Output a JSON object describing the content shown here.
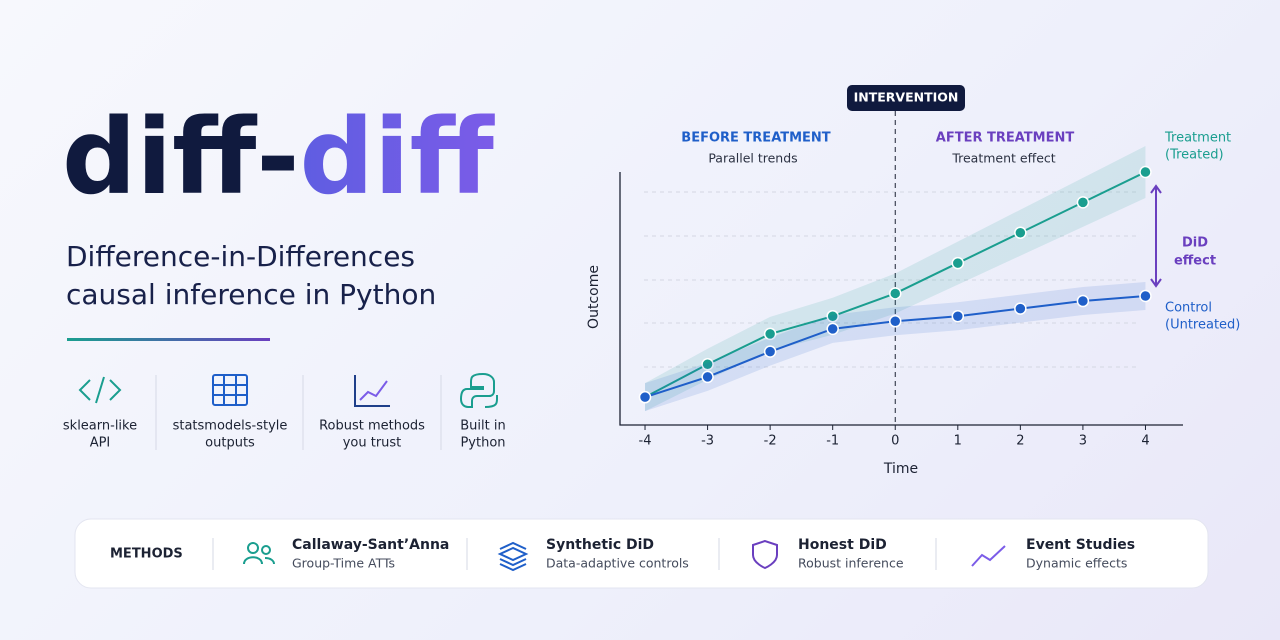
{
  "header": {
    "title_part1": "diff-",
    "title_part2": "diff",
    "subtitle": [
      "Difference-in-Differences",
      "causal inference in Python"
    ]
  },
  "features": [
    {
      "label": [
        "sklearn-like",
        "API"
      ]
    },
    {
      "label": [
        "statsmodels-style",
        "outputs"
      ]
    },
    {
      "label": [
        "Robust methods",
        "you trust"
      ]
    },
    {
      "label": [
        "Built in",
        "Python"
      ]
    }
  ],
  "methods": {
    "heading": "METHODS",
    "items": [
      {
        "title": "Callaway-Sant’Anna",
        "subtitle": "Group-Time ATTs"
      },
      {
        "title": "Synthetic DiD",
        "subtitle": "Data-adaptive controls"
      },
      {
        "title": "Honest DiD",
        "subtitle": "Robust inference"
      },
      {
        "title": "Event Studies",
        "subtitle": "Dynamic effects"
      }
    ]
  },
  "chart_data": {
    "type": "line",
    "x_label": "Time",
    "y_label": "Outcome",
    "x": [
      -4,
      -3,
      -2,
      -1,
      0,
      1,
      2,
      3,
      4
    ],
    "xlim": [
      -4.4,
      4.6
    ],
    "xticks": [
      -4,
      -3,
      -2,
      -1,
      0,
      1,
      2,
      3,
      4
    ],
    "ylim": [
      0,
      10
    ],
    "series": [
      {
        "name": [
          "Treatment",
          "(Treated)"
        ],
        "color": "#1a9e8f",
        "values": [
          1.1,
          2.4,
          3.6,
          4.3,
          5.2,
          6.4,
          7.6,
          8.8,
          10.0
        ]
      },
      {
        "name": [
          "Control",
          "(Untreated)"
        ],
        "color": "#1f5fc9",
        "values": [
          1.1,
          1.9,
          2.9,
          3.8,
          4.1,
          4.3,
          4.6,
          4.9,
          5.1
        ]
      }
    ],
    "annotations": {
      "intervention": "INTERVENTION",
      "before": "BEFORE TREATMENT",
      "before_sub": "Parallel trends",
      "after": "AFTER TREATMENT",
      "after_sub": "Treatment effect",
      "did": [
        "DiD",
        "effect"
      ]
    }
  }
}
